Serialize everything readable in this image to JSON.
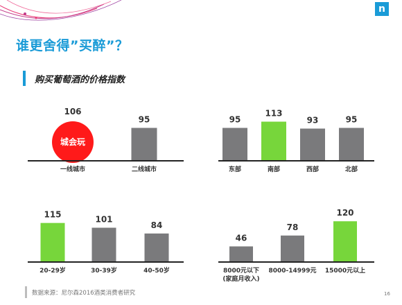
{
  "page": {
    "title": "谁更舍得”买醉”？",
    "subtitle": "购买葡萄酒的价格指数",
    "source": "数据来源：尼尔森2016酒类消费者研究",
    "page_number": "16",
    "logo": "n",
    "badge": "城会玩"
  },
  "colors": {
    "accent": "#1a9bd7",
    "gray": "#7a7a7c",
    "green": "#77d63b",
    "highlight": "#ff1a1a"
  },
  "chart_data": [
    {
      "type": "bar",
      "categories": [
        "一线城市",
        "二线城市"
      ],
      "values": [
        106,
        95
      ],
      "highlight": [
        "red-circle",
        "gray"
      ]
    },
    {
      "type": "bar",
      "categories": [
        "东部",
        "南部",
        "西部",
        "北部"
      ],
      "values": [
        95,
        113,
        93,
        95
      ],
      "highlight": [
        "gray",
        "green",
        "gray",
        "gray"
      ]
    },
    {
      "type": "bar",
      "categories": [
        "20-29岁",
        "30-39岁",
        "40-50岁"
      ],
      "values": [
        115,
        101,
        84
      ],
      "highlight": [
        "green",
        "gray",
        "gray"
      ]
    },
    {
      "type": "bar",
      "categories": [
        "8000元以下\n(家庭月收入)",
        "8000-14999元",
        "15000元以上"
      ],
      "values": [
        46,
        78,
        120
      ],
      "highlight": [
        "gray",
        "gray",
        "green"
      ]
    }
  ]
}
